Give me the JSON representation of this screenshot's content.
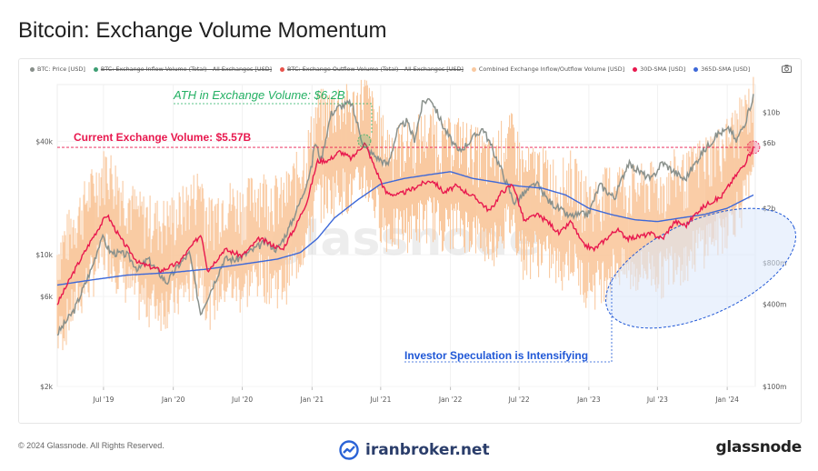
{
  "page": {
    "title": "Bitcoin: Exchange Volume Momentum",
    "copyright": "© 2024 Glassnode. All Rights Reserved.",
    "watermark_brand": "iranbroker.net",
    "logo_text": "glassnode",
    "chart_watermark": "glassnode"
  },
  "legend": [
    {
      "label": "BTC: Price [USD]",
      "color": "#888f8a",
      "struck": false
    },
    {
      "label": "BTC: Exchange Inflow Volume (Total) - All Exchanges [USD]",
      "color": "#3d9e73",
      "struck": true
    },
    {
      "label": "BTC: Exchange Outflow Volume (Total) - All Exchanges [USD]",
      "color": "#e8534b",
      "struck": true
    },
    {
      "label": "Combined Exchange Inflow/Outflow Volume [USD]",
      "color": "#f9c9a0",
      "struck": false
    },
    {
      "label": "30D-SMA [USD]",
      "color": "#e8184e",
      "struck": false
    },
    {
      "label": "365D-SMA [USD]",
      "color": "#3d68d8",
      "struck": false
    }
  ],
  "colors": {
    "price": "#8a918c",
    "volume": "#f9c9a0",
    "sma30": "#e8184e",
    "sma365": "#3d68d8",
    "ath": "#23b063",
    "current": "#e8184e",
    "speculation": "#1f57d6",
    "ellipse_fill": "#dbe8fb"
  },
  "chart_data": {
    "type": "line",
    "x_ticks": [
      "Jul '19",
      "Jan '20",
      "Jul '20",
      "Jan '21",
      "Jul '21",
      "Jan '22",
      "Jul '22",
      "Jan '23",
      "Jul '23",
      "Jan '24"
    ],
    "x_range": [
      "2019-03-01",
      "2024-03-15"
    ],
    "left_axis": {
      "label": "",
      "scale": "log",
      "range": [
        2000,
        80000
      ],
      "ticks": [
        {
          "v": 2000,
          "label": "$2k"
        },
        {
          "v": 6000,
          "label": "$6k"
        },
        {
          "v": 10000,
          "label": "$10k"
        },
        {
          "v": 40000,
          "label": "$40k"
        }
      ]
    },
    "right_axis": {
      "label": "",
      "scale": "log",
      "range": [
        100000000,
        16000000000
      ],
      "ticks": [
        {
          "v": 100000000,
          "label": "$100m"
        },
        {
          "v": 400000000,
          "label": "$400m"
        },
        {
          "v": 800000000,
          "label": "$800m"
        },
        {
          "v": 2000000000,
          "label": "$2b"
        },
        {
          "v": 6000000000,
          "label": "$6b"
        },
        {
          "v": 10000000000,
          "label": "$10b"
        }
      ]
    },
    "series": [
      {
        "name": "BTC: Price [USD]",
        "axis": "left",
        "color_key": "price",
        "points": [
          [
            "2019-03-01",
            3800
          ],
          [
            "2019-04-15",
            5100
          ],
          [
            "2019-06-01",
            8600
          ],
          [
            "2019-06-26",
            12500
          ],
          [
            "2019-07-20",
            10300
          ],
          [
            "2019-09-01",
            10000
          ],
          [
            "2019-10-01",
            8300
          ],
          [
            "2019-10-26",
            9500
          ],
          [
            "2019-12-15",
            7100
          ],
          [
            "2020-01-15",
            8800
          ],
          [
            "2020-02-13",
            10200
          ],
          [
            "2020-03-13",
            4900
          ],
          [
            "2020-04-15",
            6900
          ],
          [
            "2020-05-15",
            9500
          ],
          [
            "2020-06-15",
            9400
          ],
          [
            "2020-07-25",
            10500
          ],
          [
            "2020-09-01",
            11700
          ],
          [
            "2020-10-01",
            10600
          ],
          [
            "2020-11-01",
            13800
          ],
          [
            "2020-12-01",
            19200
          ],
          [
            "2020-12-31",
            29000
          ],
          [
            "2021-01-08",
            40000
          ],
          [
            "2021-01-25",
            32000
          ],
          [
            "2021-02-20",
            56000
          ],
          [
            "2021-03-13",
            61000
          ],
          [
            "2021-04-14",
            64000
          ],
          [
            "2021-05-19",
            37000
          ],
          [
            "2021-06-20",
            33000
          ],
          [
            "2021-07-20",
            30000
          ],
          [
            "2021-08-15",
            46000
          ],
          [
            "2021-09-07",
            51000
          ],
          [
            "2021-09-28",
            41000
          ],
          [
            "2021-10-20",
            64000
          ],
          [
            "2021-11-10",
            68000
          ],
          [
            "2021-12-15",
            47000
          ],
          [
            "2022-01-22",
            35000
          ],
          [
            "2022-03-28",
            47000
          ],
          [
            "2022-05-10",
            30000
          ],
          [
            "2022-06-18",
            19000
          ],
          [
            "2022-08-15",
            24000
          ],
          [
            "2022-09-15",
            19500
          ],
          [
            "2022-11-09",
            16000
          ],
          [
            "2022-12-31",
            16500
          ],
          [
            "2023-01-30",
            23500
          ],
          [
            "2023-03-10",
            20000
          ],
          [
            "2023-04-14",
            30500
          ],
          [
            "2023-06-15",
            25000
          ],
          [
            "2023-07-13",
            31000
          ],
          [
            "2023-09-11",
            25000
          ],
          [
            "2023-10-25",
            34500
          ],
          [
            "2023-12-08",
            44000
          ],
          [
            "2024-01-11",
            46500
          ],
          [
            "2024-01-23",
            39500
          ],
          [
            "2024-02-20",
            52000
          ],
          [
            "2024-03-10",
            70000
          ]
        ]
      },
      {
        "name": "30D-SMA [USD]",
        "axis": "right",
        "color_key": "sma30",
        "points": [
          [
            "2019-03-01",
            400000000
          ],
          [
            "2019-04-15",
            700000000
          ],
          [
            "2019-06-01",
            1200000000
          ],
          [
            "2019-07-10",
            1800000000
          ],
          [
            "2019-08-15",
            1200000000
          ],
          [
            "2019-10-01",
            800000000
          ],
          [
            "2019-12-01",
            700000000
          ],
          [
            "2020-01-15",
            800000000
          ],
          [
            "2020-03-15",
            1300000000
          ],
          [
            "2020-04-01",
            700000000
          ],
          [
            "2020-05-15",
            1000000000
          ],
          [
            "2020-07-01",
            900000000
          ],
          [
            "2020-08-15",
            1200000000
          ],
          [
            "2020-10-15",
            1000000000
          ],
          [
            "2020-11-20",
            1500000000
          ],
          [
            "2020-12-20",
            2300000000
          ],
          [
            "2021-01-15",
            4400000000
          ],
          [
            "2021-02-15",
            4500000000
          ],
          [
            "2021-03-15",
            5200000000
          ],
          [
            "2021-04-15",
            4600000000
          ],
          [
            "2021-05-20",
            6000000000
          ],
          [
            "2021-06-15",
            4000000000
          ],
          [
            "2021-07-15",
            2600000000
          ],
          [
            "2021-08-15",
            2500000000
          ],
          [
            "2021-09-15",
            2700000000
          ],
          [
            "2021-10-15",
            3000000000
          ],
          [
            "2021-11-15",
            3200000000
          ],
          [
            "2021-12-15",
            2600000000
          ],
          [
            "2022-01-15",
            2900000000
          ],
          [
            "2022-02-15",
            2600000000
          ],
          [
            "2022-03-15",
            2300000000
          ],
          [
            "2022-04-15",
            1900000000
          ],
          [
            "2022-05-15",
            2600000000
          ],
          [
            "2022-06-15",
            3000000000
          ],
          [
            "2022-07-15",
            1600000000
          ],
          [
            "2022-08-15",
            1800000000
          ],
          [
            "2022-09-15",
            1600000000
          ],
          [
            "2022-10-15",
            1300000000
          ],
          [
            "2022-11-15",
            1600000000
          ],
          [
            "2022-12-15",
            1100000000
          ],
          [
            "2023-01-15",
            1000000000
          ],
          [
            "2023-03-15",
            1400000000
          ],
          [
            "2023-04-15",
            1200000000
          ],
          [
            "2023-06-15",
            1300000000
          ],
          [
            "2023-07-15",
            1200000000
          ],
          [
            "2023-08-15",
            1600000000
          ],
          [
            "2023-09-15",
            1500000000
          ],
          [
            "2023-10-15",
            1900000000
          ],
          [
            "2023-11-15",
            2200000000
          ],
          [
            "2023-12-15",
            2400000000
          ],
          [
            "2024-01-15",
            3200000000
          ],
          [
            "2024-02-15",
            4200000000
          ],
          [
            "2024-03-10",
            5570000000
          ]
        ]
      },
      {
        "name": "365D-SMA [USD]",
        "axis": "right",
        "color_key": "sma365",
        "points": [
          [
            "2019-03-01",
            550000000
          ],
          [
            "2019-06-01",
            600000000
          ],
          [
            "2019-09-01",
            650000000
          ],
          [
            "2020-01-01",
            680000000
          ],
          [
            "2020-04-01",
            720000000
          ],
          [
            "2020-07-01",
            780000000
          ],
          [
            "2020-10-01",
            850000000
          ],
          [
            "2020-12-01",
            950000000
          ],
          [
            "2021-01-15",
            1200000000
          ],
          [
            "2021-03-01",
            1700000000
          ],
          [
            "2021-05-01",
            2300000000
          ],
          [
            "2021-07-01",
            3000000000
          ],
          [
            "2021-09-01",
            3300000000
          ],
          [
            "2021-11-01",
            3500000000
          ],
          [
            "2022-01-01",
            3700000000
          ],
          [
            "2022-03-01",
            3300000000
          ],
          [
            "2022-05-01",
            3100000000
          ],
          [
            "2022-07-01",
            2900000000
          ],
          [
            "2022-09-01",
            2800000000
          ],
          [
            "2022-11-01",
            2500000000
          ],
          [
            "2023-01-01",
            2000000000
          ],
          [
            "2023-03-01",
            1800000000
          ],
          [
            "2023-05-01",
            1650000000
          ],
          [
            "2023-07-01",
            1600000000
          ],
          [
            "2023-09-01",
            1700000000
          ],
          [
            "2023-11-01",
            1800000000
          ],
          [
            "2024-01-01",
            2000000000
          ],
          [
            "2024-03-10",
            2500000000
          ]
        ]
      }
    ],
    "annotations": [
      {
        "label": "ATH in Exchange Volume: $6.2B",
        "value": 6200000000,
        "date": "2021-05-19",
        "color_key": "ath"
      },
      {
        "label": "Current Exchange Volume: $5.57B",
        "value": 5570000000,
        "color_key": "current"
      },
      {
        "label": "Investor Speculation is Intensifying",
        "color_key": "speculation"
      }
    ],
    "grid": true,
    "legend_position": "top-left"
  }
}
